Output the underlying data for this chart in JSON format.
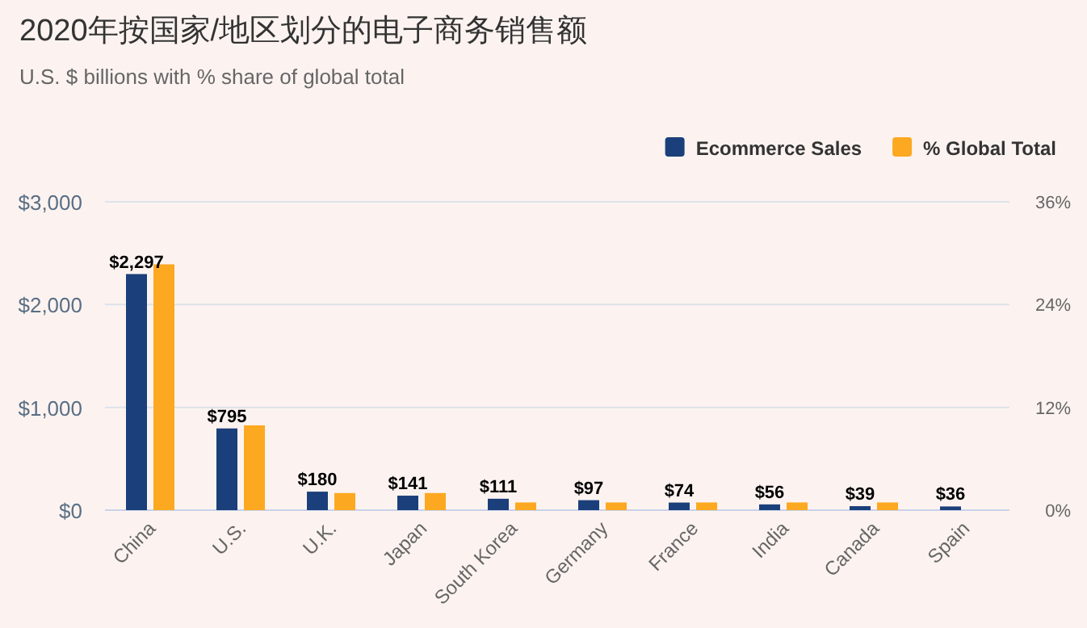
{
  "chart_data": {
    "type": "bar",
    "title": "2020年按国家/地区划分的电子商务销售额",
    "subtitle": "U.S. $ billions with % share of global total",
    "categories": [
      "China",
      "U.S.",
      "U.K.",
      "Japan",
      "South Korea",
      "Germany",
      "France",
      "India",
      "Canada",
      "Spain"
    ],
    "series": [
      {
        "name": "Ecommerce Sales",
        "color": "#1b3f7a",
        "values": [
          2297,
          795,
          180,
          141,
          111,
          97,
          74,
          56,
          39,
          36
        ],
        "value_labels": [
          "$2,297",
          "$795",
          "$180",
          "$141",
          "$111",
          "$97",
          "$74",
          "$56",
          "$39",
          "$36"
        ]
      },
      {
        "name": "% Global Total",
        "color": "#fca820",
        "axis": "y2",
        "values": [
          28.7,
          9.9,
          2.0,
          2.0,
          0.9,
          0.9,
          0.9,
          0.9,
          0.9,
          null
        ]
      }
    ],
    "ylim": [
      0,
      3000
    ],
    "yticks": [
      {
        "value": 0,
        "label": "$0"
      },
      {
        "value": 1000,
        "label": "$1,000"
      },
      {
        "value": 2000,
        "label": "$2,000"
      },
      {
        "value": 3000,
        "label": "$3,000"
      }
    ],
    "y2lim": [
      0,
      36
    ],
    "y2ticks": [
      {
        "value": 0,
        "label": "0%"
      },
      {
        "value": 12,
        "label": "12%"
      },
      {
        "value": 24,
        "label": "24%"
      },
      {
        "value": 36,
        "label": "36%"
      }
    ],
    "grid": "y",
    "legend": "top right"
  }
}
